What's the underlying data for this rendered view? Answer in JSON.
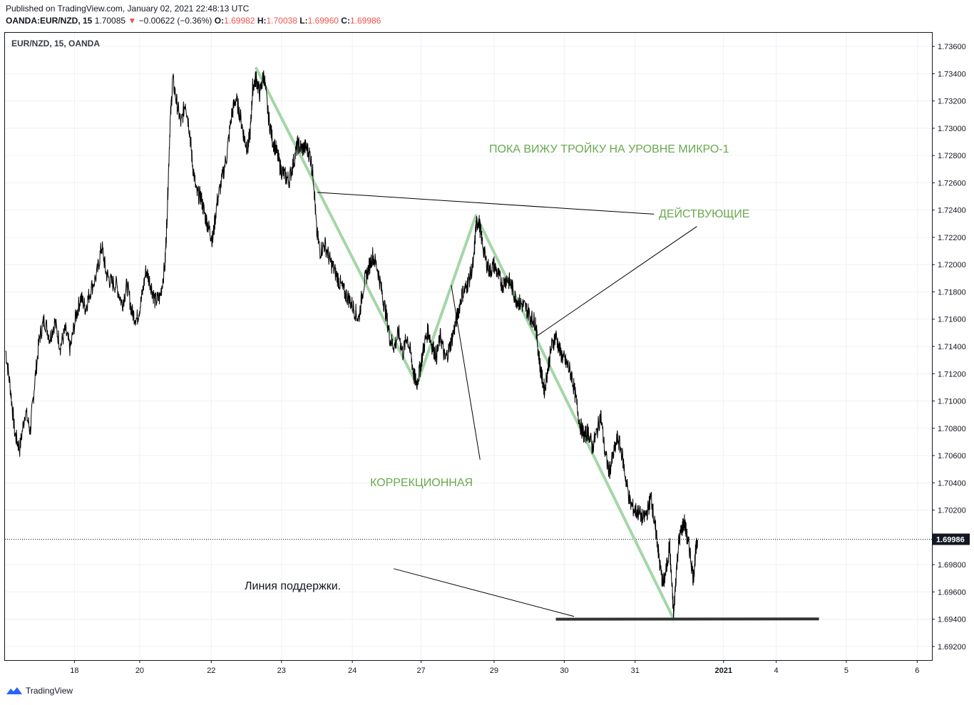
{
  "header": {
    "published": "Published on TradingView.com, January 02, 2021 22:48:13 UTC",
    "symbol": "OANDA:EUR/NZD, 15",
    "last": "1.70085",
    "change_arrow": "▼",
    "change": "−0.00622 (−0.36%)",
    "o_label": "O:",
    "o_value": "1.69982",
    "h_label": "H:",
    "h_value": "1.70038",
    "l_label": "L:",
    "l_value": "1.69960",
    "c_label": "C:",
    "c_value": "1.69986"
  },
  "chart_title": "EUR/NZD, 15, OANDA",
  "footer": {
    "brand": "TradingView"
  },
  "colors": {
    "price": "#000000",
    "wave": "#a5d6a7",
    "annotation_text": "#6aa84f",
    "support": "#333333",
    "grid": "#eef0f3",
    "change_down": "#ef5350"
  },
  "chart_data": {
    "type": "line",
    "title": "EUR/NZD, 15, OANDA",
    "ylim": [
      1.691,
      1.737
    ],
    "y_ticks": [
      "1.73600",
      "1.73400",
      "1.73200",
      "1.73000",
      "1.72800",
      "1.72600",
      "1.72400",
      "1.72200",
      "1.72000",
      "1.71800",
      "1.71600",
      "1.71400",
      "1.71200",
      "1.71000",
      "1.70800",
      "1.70600",
      "1.70400",
      "1.70200",
      "1.69800",
      "1.69600",
      "1.69400",
      "1.69200"
    ],
    "current_price": "1.69986",
    "x_ticks": [
      {
        "label": "18",
        "day": 1.68
      },
      {
        "label": "20",
        "day": 2.61
      },
      {
        "label": "22",
        "day": 3.63
      },
      {
        "label": "23",
        "day": 4.63
      },
      {
        "label": "24",
        "day": 5.64
      },
      {
        "label": "27",
        "day": 6.62
      },
      {
        "label": "29",
        "day": 7.66
      },
      {
        "label": "30",
        "day": 8.66
      },
      {
        "label": "31",
        "day": 9.67
      },
      {
        "label": "2021",
        "day": 10.93
      },
      {
        "label": "4",
        "day": 11.68
      },
      {
        "label": "5",
        "day": 12.68
      },
      {
        "label": "6",
        "day": 13.69
      }
    ],
    "xlim_days": [
      0.69,
      13.9
    ],
    "price_path": [
      [
        0.7,
        1.7137
      ],
      [
        0.77,
        1.7108
      ],
      [
        0.83,
        1.7076
      ],
      [
        0.9,
        1.7065
      ],
      [
        0.98,
        1.7093
      ],
      [
        1.05,
        1.7078
      ],
      [
        1.11,
        1.7112
      ],
      [
        1.18,
        1.7146
      ],
      [
        1.25,
        1.716
      ],
      [
        1.33,
        1.7146
      ],
      [
        1.4,
        1.7158
      ],
      [
        1.48,
        1.714
      ],
      [
        1.55,
        1.7152
      ],
      [
        1.62,
        1.7138
      ],
      [
        1.7,
        1.7162
      ],
      [
        1.77,
        1.7176
      ],
      [
        1.84,
        1.7168
      ],
      [
        1.9,
        1.718
      ],
      [
        2.0,
        1.7193
      ],
      [
        2.07,
        1.7214
      ],
      [
        2.13,
        1.7194
      ],
      [
        2.2,
        1.7187
      ],
      [
        2.28,
        1.7185
      ],
      [
        2.36,
        1.7171
      ],
      [
        2.43,
        1.7185
      ],
      [
        2.5,
        1.7165
      ],
      [
        2.57,
        1.716
      ],
      [
        2.63,
        1.7173
      ],
      [
        2.7,
        1.7196
      ],
      [
        2.77,
        1.7185
      ],
      [
        2.83,
        1.7173
      ],
      [
        2.9,
        1.7176
      ],
      [
        2.97,
        1.72
      ],
      [
        3.0,
        1.7236
      ],
      [
        3.04,
        1.73
      ],
      [
        3.08,
        1.7336
      ],
      [
        3.14,
        1.7318
      ],
      [
        3.2,
        1.7303
      ],
      [
        3.26,
        1.732
      ],
      [
        3.32,
        1.7299
      ],
      [
        3.36,
        1.7275
      ],
      [
        3.42,
        1.7252
      ],
      [
        3.48,
        1.725
      ],
      [
        3.54,
        1.7236
      ],
      [
        3.6,
        1.7226
      ],
      [
        3.65,
        1.7218
      ],
      [
        3.71,
        1.7245
      ],
      [
        3.78,
        1.7262
      ],
      [
        3.85,
        1.728
      ],
      [
        3.92,
        1.731
      ],
      [
        3.98,
        1.7322
      ],
      [
        4.04,
        1.731
      ],
      [
        4.1,
        1.7293
      ],
      [
        4.15,
        1.7285
      ],
      [
        4.19,
        1.73
      ],
      [
        4.22,
        1.733
      ],
      [
        4.27,
        1.7337
      ],
      [
        4.32,
        1.7325
      ],
      [
        4.38,
        1.734
      ],
      [
        4.44,
        1.731
      ],
      [
        4.5,
        1.7292
      ],
      [
        4.56,
        1.7283
      ],
      [
        4.62,
        1.727
      ],
      [
        4.68,
        1.7265
      ],
      [
        4.74,
        1.7262
      ],
      [
        4.8,
        1.7275
      ],
      [
        4.86,
        1.7288
      ],
      [
        4.92,
        1.7285
      ],
      [
        4.98,
        1.7286
      ],
      [
        5.04,
        1.728
      ],
      [
        5.09,
        1.7262
      ],
      [
        5.13,
        1.7225
      ],
      [
        5.18,
        1.721
      ],
      [
        5.25,
        1.7215
      ],
      [
        5.32,
        1.7203
      ],
      [
        5.39,
        1.7195
      ],
      [
        5.45,
        1.7188
      ],
      [
        5.52,
        1.718
      ],
      [
        5.59,
        1.7175
      ],
      [
        5.66,
        1.7168
      ],
      [
        5.73,
        1.716
      ],
      [
        5.8,
        1.7185
      ],
      [
        5.86,
        1.7195
      ],
      [
        5.93,
        1.7207
      ],
      [
        6.0,
        1.7197
      ],
      [
        6.06,
        1.718
      ],
      [
        6.12,
        1.7164
      ],
      [
        6.18,
        1.7145
      ],
      [
        6.24,
        1.714
      ],
      [
        6.3,
        1.715
      ],
      [
        6.36,
        1.7135
      ],
      [
        6.42,
        1.7148
      ],
      [
        6.48,
        1.7132
      ],
      [
        6.52,
        1.7118
      ],
      [
        6.56,
        1.7113
      ],
      [
        6.61,
        1.7125
      ],
      [
        6.66,
        1.714
      ],
      [
        6.72,
        1.7152
      ],
      [
        6.78,
        1.714
      ],
      [
        6.84,
        1.7133
      ],
      [
        6.9,
        1.7148
      ],
      [
        6.96,
        1.713
      ],
      [
        7.02,
        1.7138
      ],
      [
        7.08,
        1.715
      ],
      [
        7.14,
        1.7163
      ],
      [
        7.2,
        1.7178
      ],
      [
        7.26,
        1.7183
      ],
      [
        7.31,
        1.719
      ],
      [
        7.37,
        1.7202
      ],
      [
        7.4,
        1.7228
      ],
      [
        7.44,
        1.7233
      ],
      [
        7.48,
        1.722
      ],
      [
        7.54,
        1.7203
      ],
      [
        7.6,
        1.7195
      ],
      [
        7.66,
        1.72
      ],
      [
        7.72,
        1.7192
      ],
      [
        7.78,
        1.7185
      ],
      [
        7.84,
        1.719
      ],
      [
        7.9,
        1.7186
      ],
      [
        7.96,
        1.7176
      ],
      [
        8.02,
        1.7172
      ],
      [
        8.08,
        1.717
      ],
      [
        8.14,
        1.7166
      ],
      [
        8.2,
        1.716
      ],
      [
        8.25,
        1.7158
      ],
      [
        8.29,
        1.7137
      ],
      [
        8.33,
        1.712
      ],
      [
        8.38,
        1.7108
      ],
      [
        8.43,
        1.7125
      ],
      [
        8.48,
        1.714
      ],
      [
        8.54,
        1.7148
      ],
      [
        8.6,
        1.7136
      ],
      [
        8.66,
        1.713
      ],
      [
        8.71,
        1.7126
      ],
      [
        8.77,
        1.7118
      ],
      [
        8.83,
        1.71
      ],
      [
        8.89,
        1.7082
      ],
      [
        8.95,
        1.7074
      ],
      [
        9.0,
        1.7078
      ],
      [
        9.06,
        1.7066
      ],
      [
        9.12,
        1.7076
      ],
      [
        9.18,
        1.709
      ],
      [
        9.24,
        1.7062
      ],
      [
        9.3,
        1.7048
      ],
      [
        9.36,
        1.706
      ],
      [
        9.42,
        1.7073
      ],
      [
        9.48,
        1.7062
      ],
      [
        9.54,
        1.7042
      ],
      [
        9.6,
        1.7025
      ],
      [
        9.66,
        1.702
      ],
      [
        9.72,
        1.7018
      ],
      [
        9.79,
        1.7013
      ],
      [
        9.85,
        1.702
      ],
      [
        9.9,
        1.703
      ],
      [
        9.94,
        1.7012
      ],
      [
        9.98,
        1.7
      ],
      [
        10.02,
        1.698
      ],
      [
        10.07,
        1.6965
      ],
      [
        10.12,
        1.6978
      ],
      [
        10.16,
        1.6995
      ],
      [
        10.19,
        1.6968
      ],
      [
        10.22,
        1.6942
      ],
      [
        10.25,
        1.697
      ],
      [
        10.29,
        1.6996
      ],
      [
        10.33,
        1.7005
      ],
      [
        10.37,
        1.7012
      ],
      [
        10.41,
        1.7
      ],
      [
        10.45,
        1.699
      ],
      [
        10.5,
        1.697
      ],
      [
        10.53,
        1.6988
      ],
      [
        10.56,
        1.6998
      ]
    ]
  },
  "annotations": {
    "micro": "ПОКА ВИЖУ ТРОЙКУ НА УРОВНЕ МИКРО-1",
    "impulse": "ДЕЙСТВУЮЩИЕ",
    "correction": "КОРРЕКЦИОННАЯ",
    "support": "Линия поддержки."
  }
}
